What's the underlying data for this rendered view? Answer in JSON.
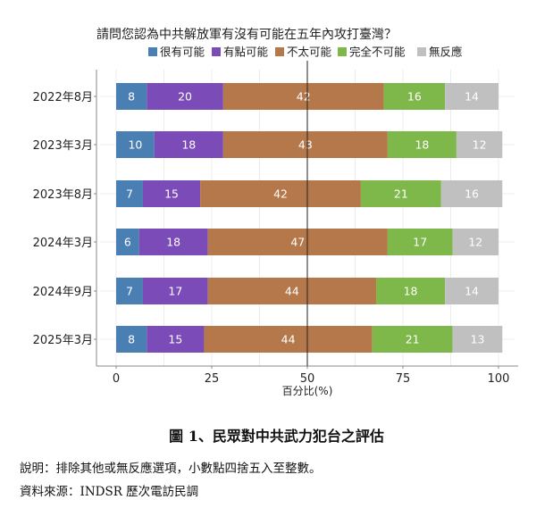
{
  "chart_data": {
    "type": "bar",
    "orientation": "horizontal",
    "stacked": true,
    "title": "請問您認為中共解放軍有沒有可能在五年內攻打臺灣？",
    "xlabel": "百分比(%)",
    "ylabel": "",
    "xlim": [
      0,
      100
    ],
    "xticks": [
      "0",
      "25",
      "50",
      "75",
      "100"
    ],
    "reference_line": 50,
    "grid": true,
    "legend_position": "top",
    "categories": [
      "2022年8月",
      "2023年3月",
      "2023年8月",
      "2024年3月",
      "2024年9月",
      "2025年3月"
    ],
    "series": [
      {
        "name": "很有可能",
        "color": "#4a7fb3",
        "values": [
          8,
          10,
          7,
          6,
          7,
          8
        ]
      },
      {
        "name": "有點可能",
        "color": "#7b4bb8",
        "values": [
          20,
          18,
          15,
          18,
          17,
          15
        ]
      },
      {
        "name": "不太可能",
        "color": "#b5784a",
        "values": [
          42,
          43,
          42,
          47,
          44,
          44
        ]
      },
      {
        "name": "完全不可能",
        "color": "#7fb84a",
        "values": [
          16,
          18,
          21,
          17,
          18,
          21
        ]
      },
      {
        "name": "無反應",
        "color": "#c0c0c0",
        "values": [
          14,
          12,
          16,
          12,
          14,
          13
        ]
      }
    ]
  },
  "caption": "圖 1、民眾對中共武力犯台之評估",
  "note_explanation": "說明：排除其他或無反應選項，小數點四捨五入至整數。",
  "note_source": "資料來源：INDSR 歷次電訪民調"
}
